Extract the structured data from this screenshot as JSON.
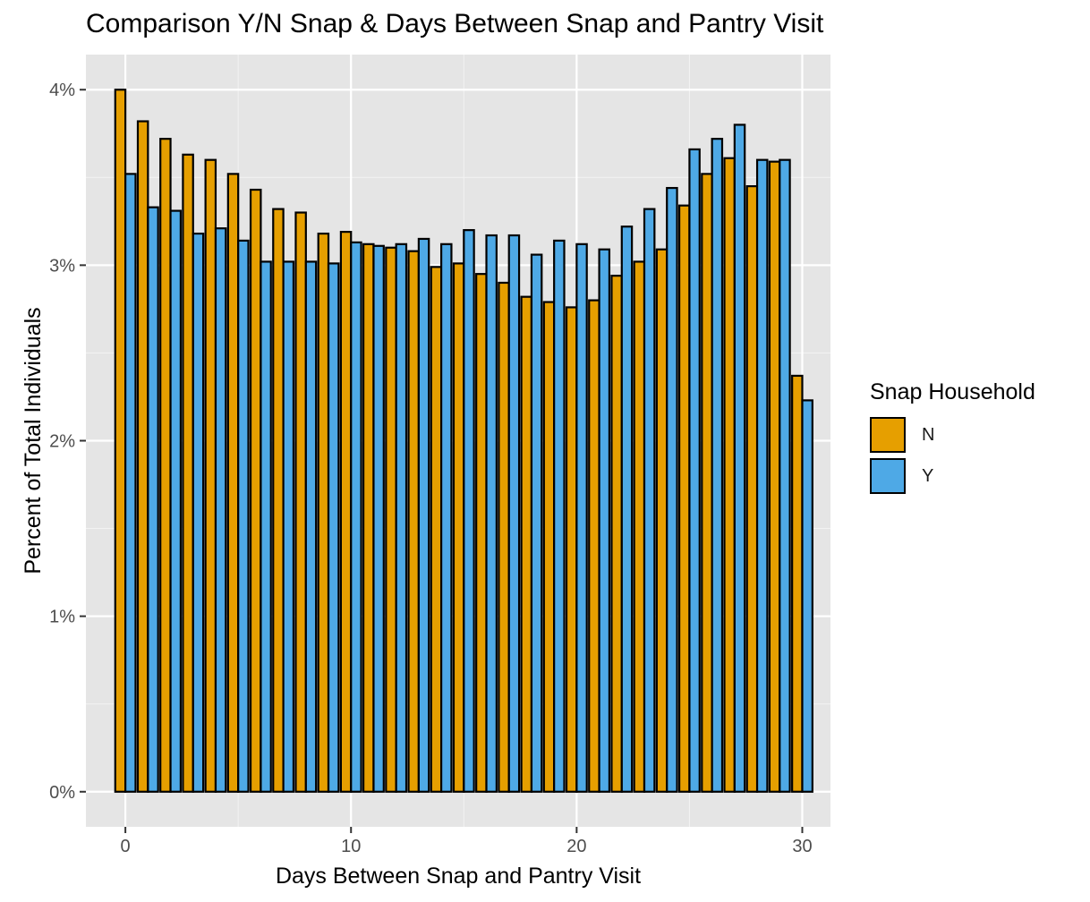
{
  "chart_data": {
    "type": "bar",
    "title": "Comparison Y/N Snap & Days Between Snap and Pantry Visit",
    "xlabel": "Days Between Snap and Pantry Visit",
    "ylabel": "Percent of Total Individuals",
    "x": [
      0,
      1,
      2,
      3,
      4,
      5,
      6,
      7,
      8,
      9,
      10,
      11,
      12,
      13,
      14,
      15,
      16,
      17,
      18,
      19,
      20,
      21,
      22,
      23,
      24,
      25,
      26,
      27,
      28,
      29,
      30
    ],
    "xlim": [
      -1.75,
      31.25
    ],
    "ylim": [
      -0.2,
      4.2
    ],
    "x_ticks": [
      0,
      10,
      20,
      30
    ],
    "x_tick_labels": [
      "0",
      "10",
      "20",
      "30"
    ],
    "y_ticks": [
      0,
      1,
      2,
      3,
      4
    ],
    "y_tick_labels": [
      "0%",
      "1%",
      "2%",
      "3%",
      "4%"
    ],
    "grid": true,
    "legend": {
      "title": "Snap Household",
      "position": "right"
    },
    "series": [
      {
        "name": "N",
        "color": "#E69F00",
        "values": [
          4.0,
          3.82,
          3.72,
          3.63,
          3.6,
          3.52,
          3.43,
          3.32,
          3.3,
          3.18,
          3.19,
          3.12,
          3.1,
          3.08,
          2.99,
          3.01,
          2.95,
          2.9,
          2.82,
          2.79,
          2.76,
          2.8,
          2.94,
          3.02,
          3.09,
          3.34,
          3.52,
          3.61,
          3.45,
          3.59,
          2.37
        ]
      },
      {
        "name": "Y",
        "color": "#4EA9E6",
        "values": [
          3.52,
          3.33,
          3.31,
          3.18,
          3.21,
          3.14,
          3.02,
          3.02,
          3.02,
          3.01,
          3.13,
          3.11,
          3.12,
          3.15,
          3.12,
          3.2,
          3.17,
          3.17,
          3.06,
          3.14,
          3.12,
          3.09,
          3.22,
          3.32,
          3.44,
          3.66,
          3.72,
          3.8,
          3.6,
          3.6,
          2.23
        ]
      }
    ]
  }
}
